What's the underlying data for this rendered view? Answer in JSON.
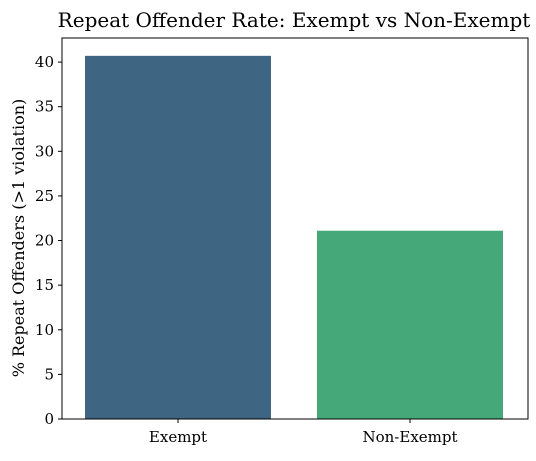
{
  "chart_data": {
    "type": "bar",
    "title": "Repeat Offender Rate: Exempt vs Non-Exempt",
    "xlabel": "",
    "ylabel": "% Repeat Offenders (>1 violation)",
    "categories": [
      "Exempt",
      "Non-Exempt"
    ],
    "values": [
      40.7,
      21.1
    ],
    "colors": [
      "#3e6582",
      "#45a878"
    ],
    "ylim": [
      0,
      42.7
    ],
    "yticks": [
      0,
      5,
      10,
      15,
      20,
      25,
      30,
      35,
      40
    ],
    "grid": false,
    "legend": "none"
  }
}
